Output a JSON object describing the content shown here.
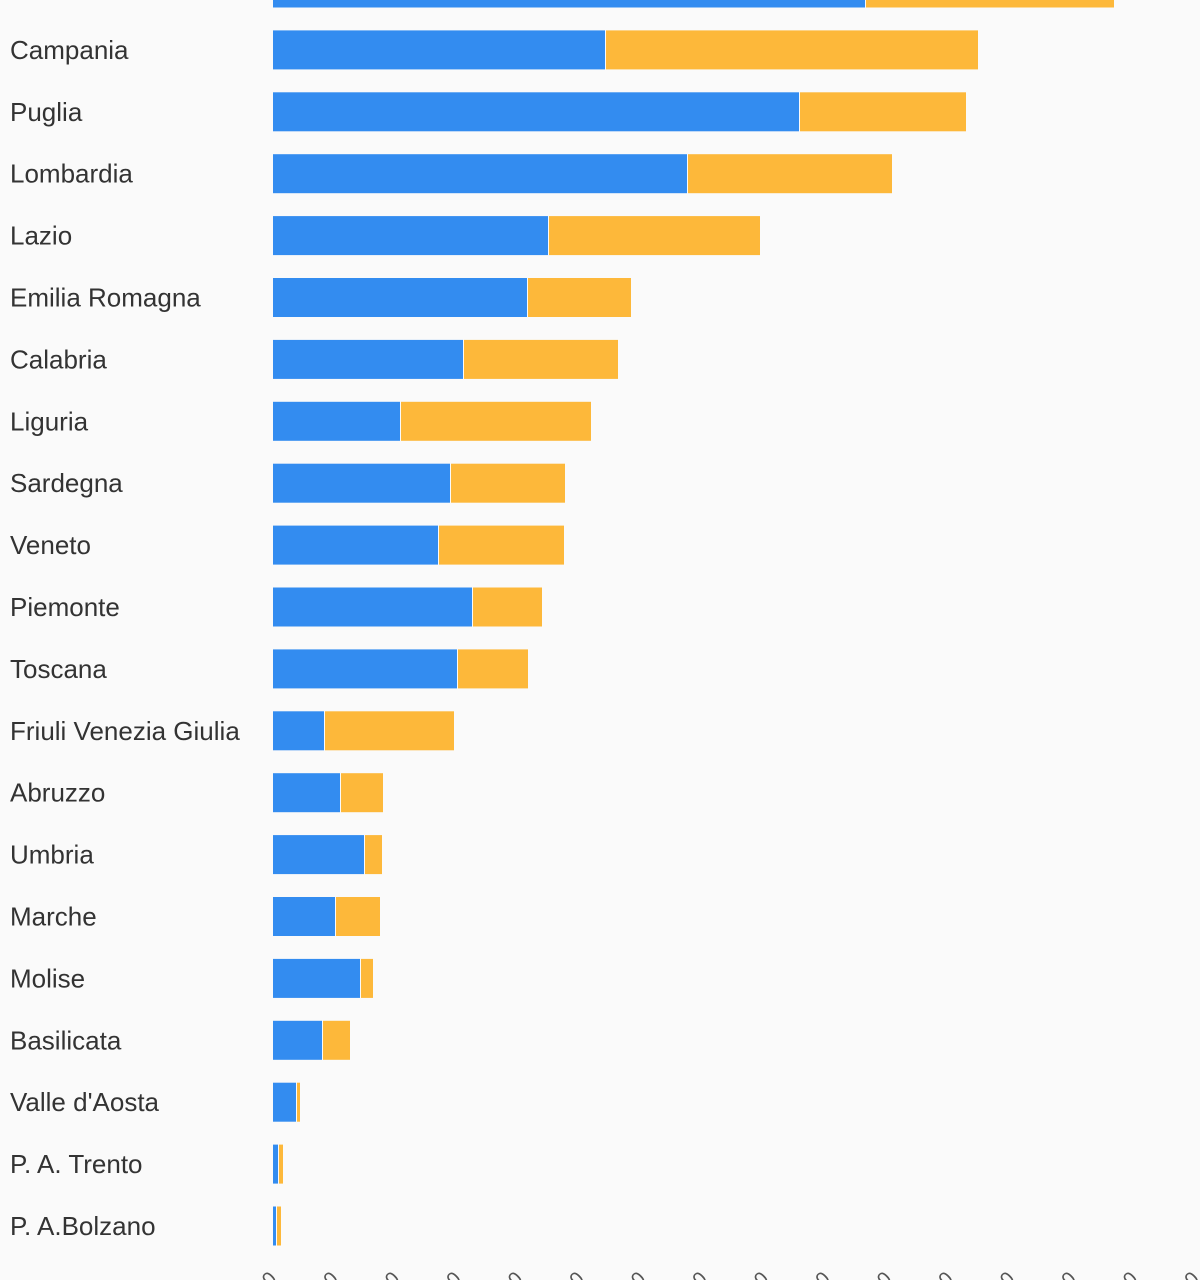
{
  "chart_data": {
    "type": "bar",
    "orientation": "horizontal",
    "stacked": true,
    "categories": [
      "",
      "Campania",
      "Puglia",
      "Lombardia",
      "Lazio",
      "Emilia Romagna",
      "Calabria",
      "Liguria",
      "Sardegna",
      "Veneto",
      "Piemonte",
      "Toscana",
      "Friuli Venezia Giulia",
      "Abruzzo",
      "Umbria",
      "Marche",
      "Molise",
      "Basilicata",
      "Valle d'Aosta",
      "P. A. Trento",
      "P. A.Bolzano"
    ],
    "series": [
      {
        "color": "#338cf0",
        "values": [
          593,
          333,
          527,
          415,
          276,
          255,
          191,
          128,
          178,
          166,
          200,
          185,
          52,
          68,
          92,
          63,
          88,
          50,
          24,
          6,
          4
        ]
      },
      {
        "color": "#fdb83a",
        "values": [
          248,
          372,
          166,
          204,
          211,
          103,
          154,
          190,
          114,
          125,
          69,
          70,
          129,
          42,
          17,
          44,
          12,
          27,
          3,
          4,
          4
        ]
      }
    ],
    "xlim": [
      0,
      930
    ],
    "x_tick_count": 16,
    "grid": false,
    "legend": "none"
  }
}
